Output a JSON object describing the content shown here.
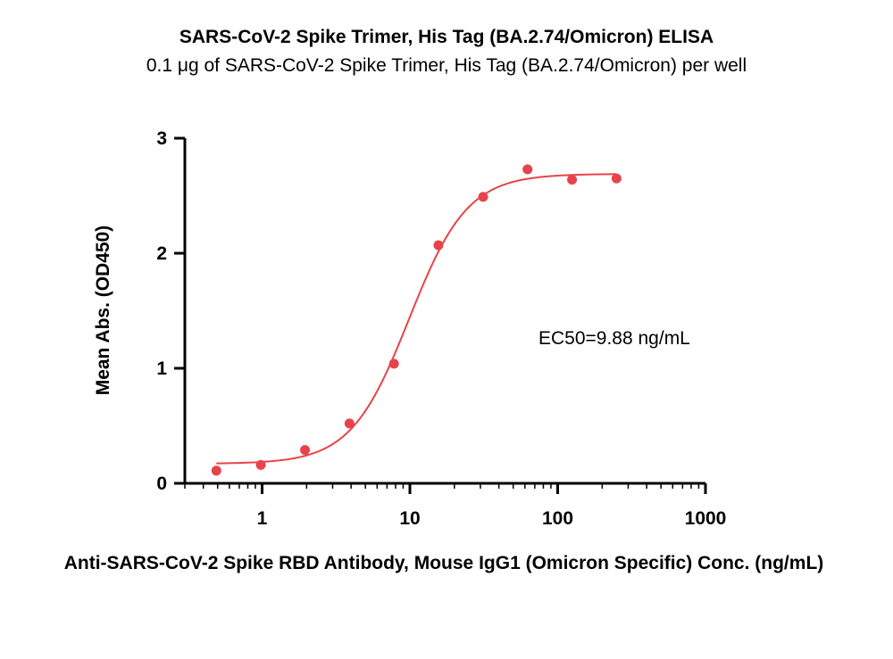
{
  "chart_data": {
    "type": "scatter",
    "title": "SARS-CoV-2 Spike Trimer, His Tag (BA.2.74/Omicron) ELISA",
    "subtitle": "0.1 μg of SARS-CoV-2 Spike Trimer, His Tag (BA.2.74/Omicron) per well",
    "xlabel": "Anti-SARS-CoV-2 Spike RBD Antibody, Mouse IgG1 (Omicron Specific) Conc. (ng/mL)",
    "ylabel": "Mean Abs. (OD450)",
    "x_scale": "log",
    "xlim": [
      0.3,
      1000
    ],
    "ylim": [
      0,
      3
    ],
    "x_ticks": [
      1,
      10,
      100,
      1000
    ],
    "x_tick_labels": [
      "1",
      "10",
      "100",
      "1000"
    ],
    "y_ticks": [
      0,
      1,
      2,
      3
    ],
    "y_tick_labels": [
      "0",
      "1",
      "2",
      "3"
    ],
    "grid": false,
    "series": [
      {
        "color": "#e8434a",
        "points": [
          {
            "x": 0.49,
            "y": 0.11
          },
          {
            "x": 0.98,
            "y": 0.16
          },
          {
            "x": 1.95,
            "y": 0.29
          },
          {
            "x": 3.9,
            "y": 0.52
          },
          {
            "x": 7.8,
            "y": 1.04
          },
          {
            "x": 15.6,
            "y": 2.07
          },
          {
            "x": 31.3,
            "y": 2.49
          },
          {
            "x": 62.5,
            "y": 2.73
          },
          {
            "x": 125,
            "y": 2.64
          },
          {
            "x": 250,
            "y": 2.65
          }
        ]
      }
    ],
    "fit_curve": {
      "model": "4PL",
      "bottom": 0.17,
      "top": 2.69,
      "ec50": 9.88,
      "hill": 2.2,
      "x_range": [
        0.49,
        250
      ]
    },
    "annotations": [
      {
        "text": "EC50=9.88 ng/mL"
      }
    ]
  }
}
